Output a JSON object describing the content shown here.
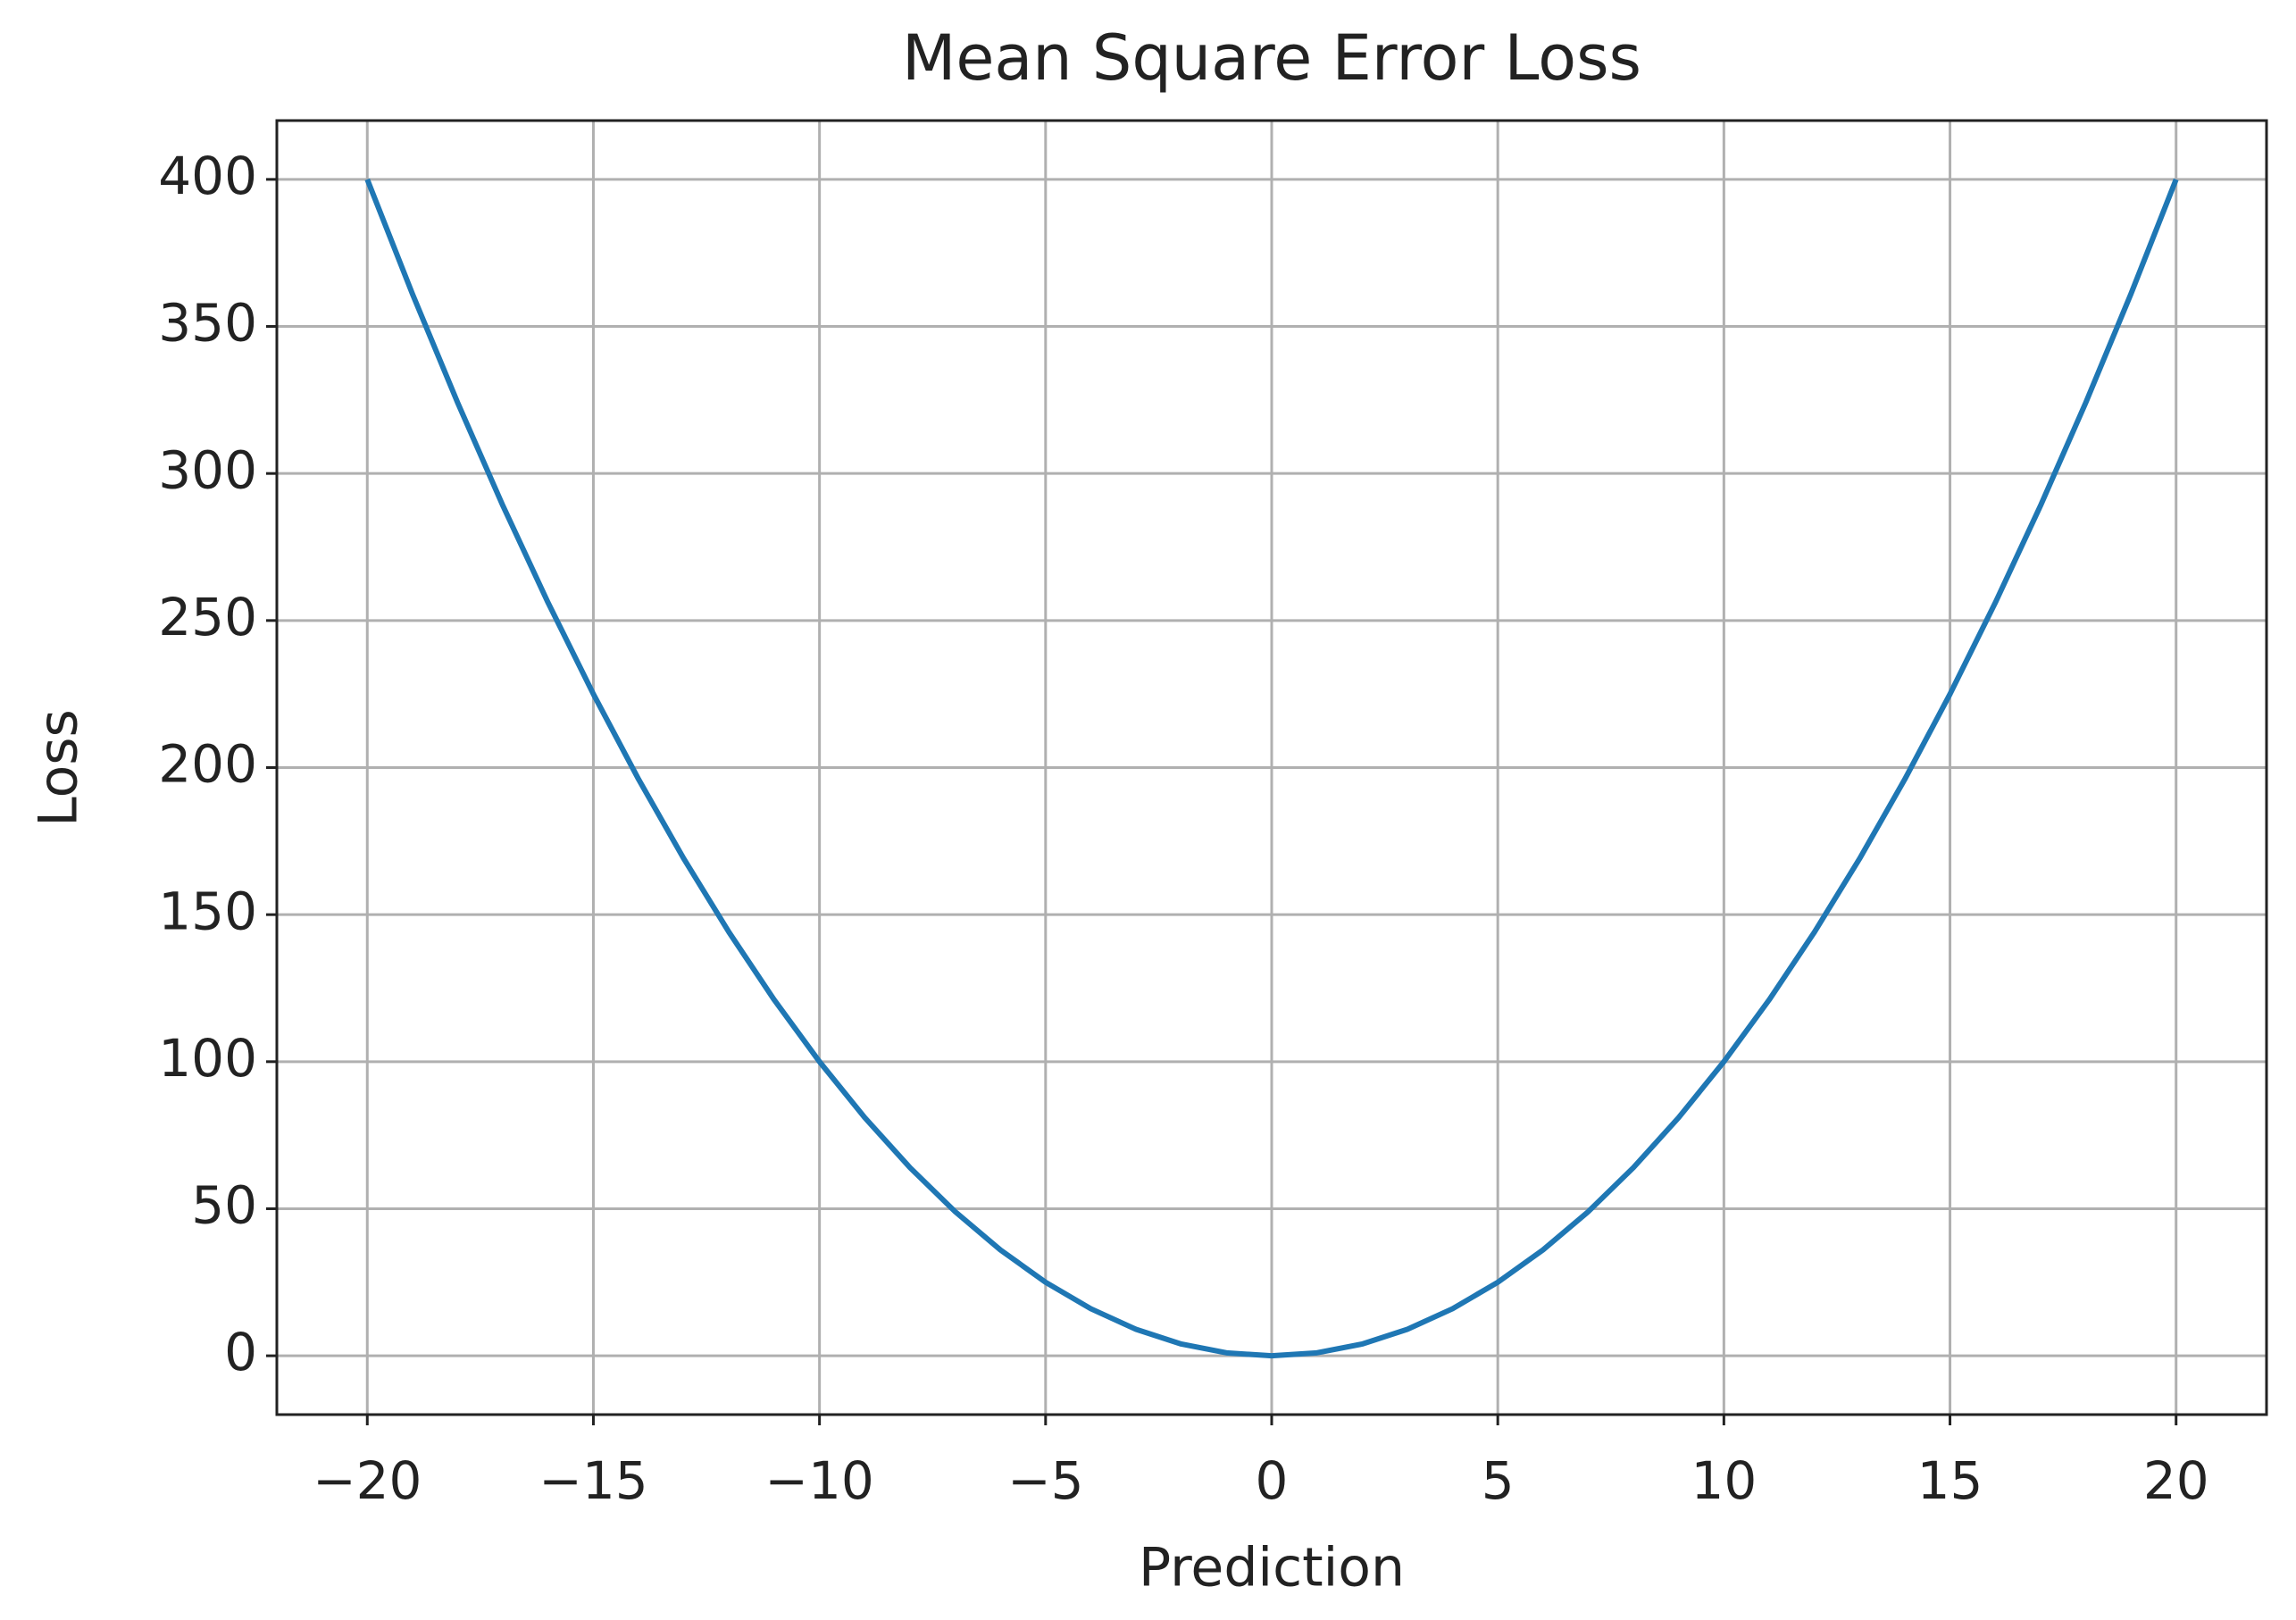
{
  "chart_data": {
    "type": "line",
    "title": "Mean Square Error Loss",
    "xlabel": "Prediction",
    "ylabel": "Loss",
    "x": [
      -20,
      -19,
      -18,
      -17,
      -16,
      -15,
      -14,
      -13,
      -12,
      -11,
      -10,
      -9,
      -8,
      -7,
      -6,
      -5,
      -4,
      -3,
      -2,
      -1,
      0,
      1,
      2,
      3,
      4,
      5,
      6,
      7,
      8,
      9,
      10,
      11,
      12,
      13,
      14,
      15,
      16,
      17,
      18,
      19,
      20
    ],
    "values": [
      400,
      361,
      324,
      289,
      256,
      225,
      196,
      169,
      144,
      121,
      100,
      81,
      64,
      49,
      36,
      25,
      16,
      9,
      4,
      1,
      0,
      1,
      4,
      9,
      16,
      25,
      36,
      49,
      64,
      81,
      100,
      121,
      144,
      169,
      196,
      225,
      256,
      289,
      324,
      361,
      400
    ],
    "color": "#1f77b4",
    "xlim": [
      -22,
      22
    ],
    "xticks": [
      {
        "value": -20,
        "label": "−20"
      },
      {
        "value": -15,
        "label": "−15"
      },
      {
        "value": -10,
        "label": "−10"
      },
      {
        "value": -5,
        "label": "−5"
      },
      0,
      5,
      10,
      15,
      20
    ],
    "ylim": [
      -20,
      420
    ],
    "yticks": [
      0,
      50,
      100,
      150,
      200,
      250,
      300,
      350,
      400
    ],
    "grid": true
  }
}
